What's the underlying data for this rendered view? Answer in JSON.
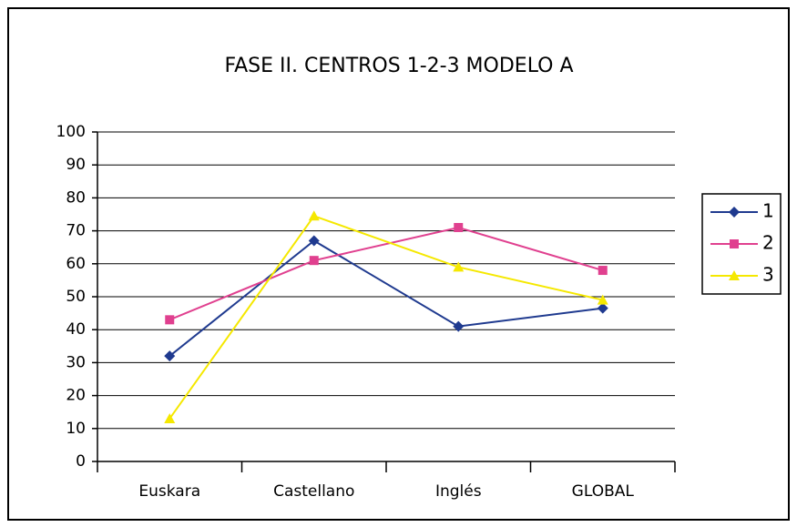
{
  "chart_data": {
    "type": "line",
    "title": "FASE II. CENTROS 1-2-3 MODELO A",
    "categories": [
      "Euskara",
      "Castellano",
      "Inglés",
      "GLOBAL"
    ],
    "series": [
      {
        "name": "1",
        "color": "#1f3a8f",
        "marker": "diamond",
        "values": [
          32,
          67,
          41,
          46.5
        ]
      },
      {
        "name": "2",
        "color": "#e0408f",
        "marker": "square",
        "values": [
          43,
          61,
          71,
          58
        ]
      },
      {
        "name": "3",
        "color": "#f5e800",
        "marker": "triangle",
        "values": [
          13,
          74.5,
          59,
          49
        ]
      }
    ],
    "ylim": [
      0,
      100
    ],
    "yticks": [
      0,
      10,
      20,
      30,
      40,
      50,
      60,
      70,
      80,
      90,
      100
    ],
    "grid": true,
    "legend": "right"
  }
}
